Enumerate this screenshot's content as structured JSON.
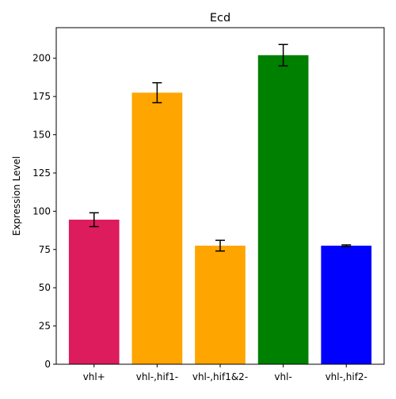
{
  "chart_data": {
    "type": "bar",
    "title": "Ecd",
    "xlabel": "",
    "ylabel": "Expression Level",
    "categories": [
      "vhl+",
      "vhl-,hif1-",
      "vhl-,hif1&2-",
      "vhl-",
      "vhl-,hif2-"
    ],
    "values": [
      94.5,
      177.5,
      77.5,
      202,
      77.5
    ],
    "errors": [
      4.5,
      6.5,
      3.5,
      7,
      0.5
    ],
    "colors": [
      "#dc1c5c",
      "#ffa500",
      "#ffa500",
      "#008000",
      "#0000ff"
    ],
    "ylim": [
      0,
      220
    ],
    "yticks": [
      0,
      25,
      50,
      75,
      100,
      125,
      150,
      175,
      200
    ],
    "grid": false,
    "legend": "none"
  }
}
